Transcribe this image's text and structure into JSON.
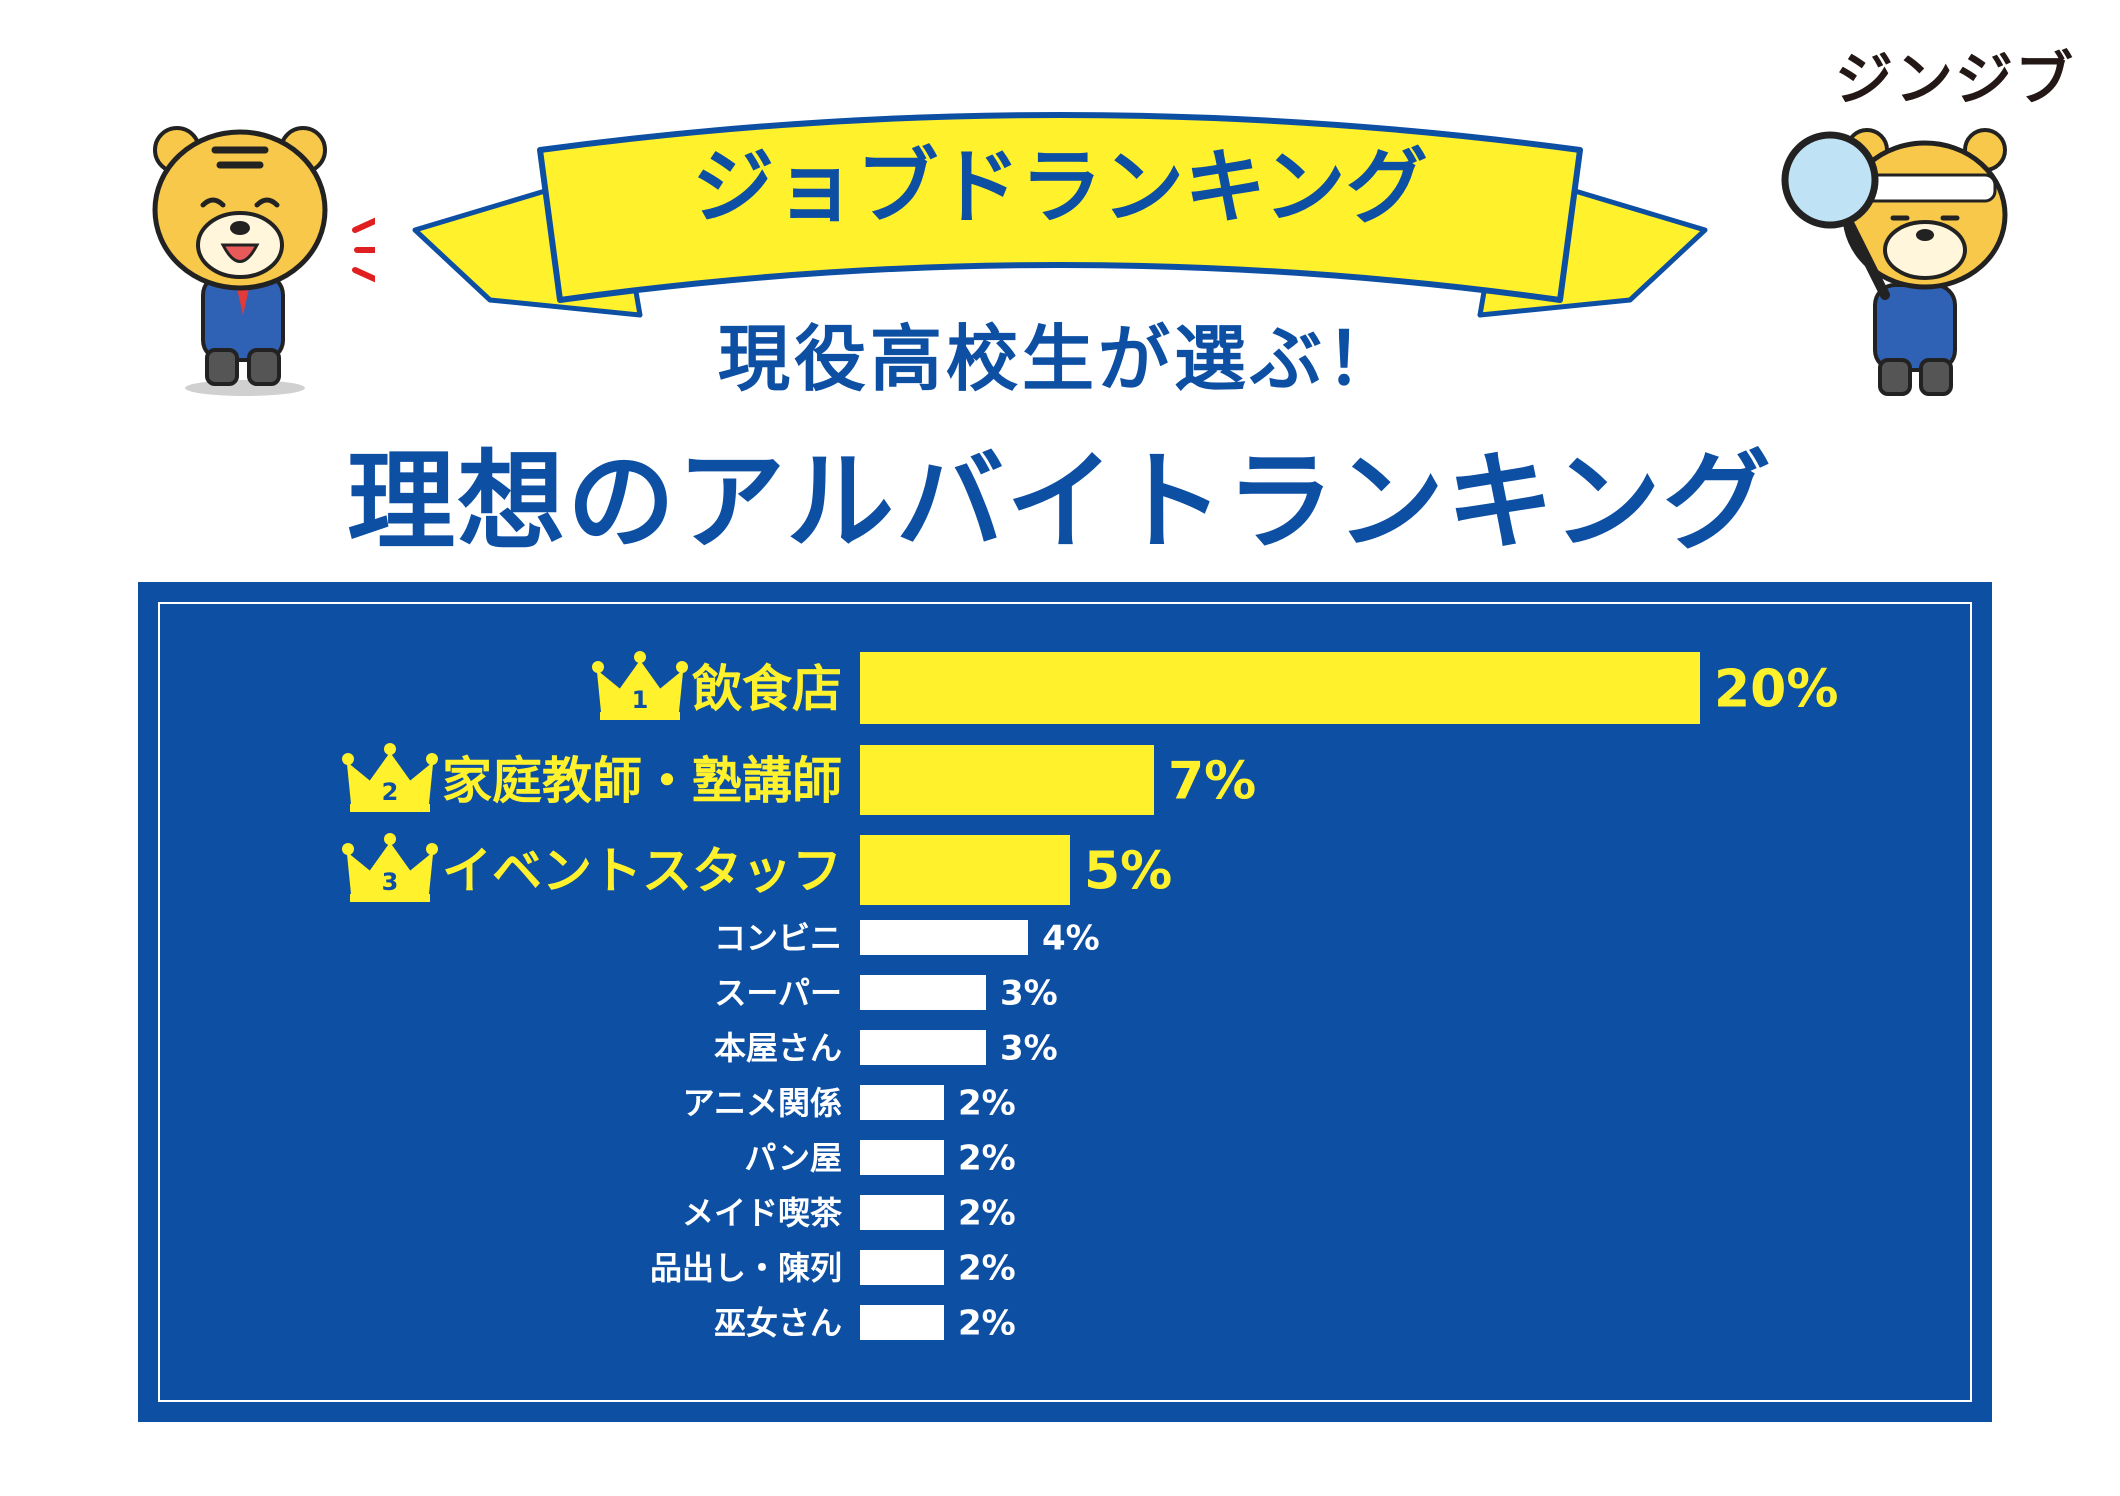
{
  "brand": "ジンジブ",
  "banner_text": "ジョブドランキング",
  "subtitle": "現役高校生が選ぶ！",
  "title": "理想のアルバイトランキング",
  "colors": {
    "navy": "#0d4fa3",
    "yellow": "#fff12b",
    "white": "#ffffff"
  },
  "icons": [
    "crown-icon",
    "tiger-mascot-icon",
    "magnifier-icon"
  ],
  "chart_data": {
    "type": "bar",
    "orientation": "horizontal",
    "categories": [
      "飲食店",
      "家庭教師・塾講師",
      "イベントスタッフ",
      "コンビニ",
      "スーパー",
      "本屋さん",
      "アニメ関係",
      "パン屋",
      "メイド喫茶",
      "品出し・陳列",
      "巫女さん"
    ],
    "values": [
      20,
      7,
      5,
      4,
      3,
      3,
      2,
      2,
      2,
      2,
      2
    ],
    "value_labels": [
      "20%",
      "7%",
      "5%",
      "4%",
      "3%",
      "3%",
      "2%",
      "2%",
      "2%",
      "2%",
      "2%"
    ],
    "rank_labels": [
      "1",
      "2",
      "3"
    ],
    "unit": "%",
    "highlight_top": 3
  }
}
